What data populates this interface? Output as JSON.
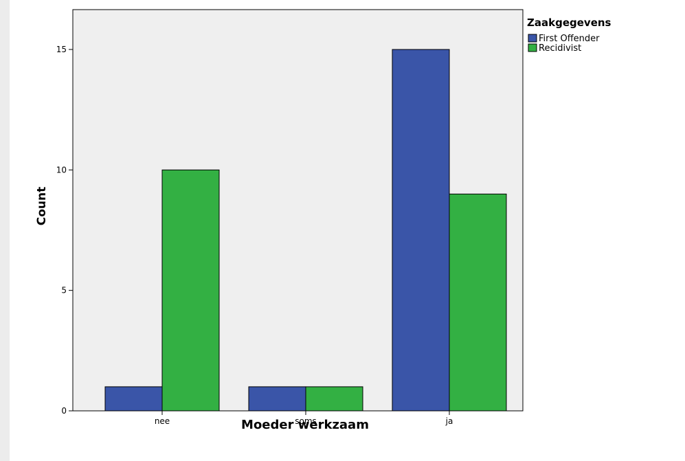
{
  "chart_data": {
    "type": "bar",
    "categories": [
      "nee",
      "soms",
      "ja"
    ],
    "series": [
      {
        "name": "First Offender",
        "color": "#3a55a8",
        "values": [
          1,
          1,
          15
        ]
      },
      {
        "name": "Recidivist",
        "color": "#33b043",
        "values": [
          10,
          1,
          9
        ]
      }
    ],
    "xlabel": "Moeder werkzaam",
    "ylabel": "Count",
    "ylim": [
      0,
      15
    ],
    "yticks": [
      0,
      5,
      10,
      15
    ],
    "legend": {
      "title": "Zaakgegevens",
      "position": "top-right"
    },
    "grid": false,
    "plot_background": "#efefef"
  }
}
